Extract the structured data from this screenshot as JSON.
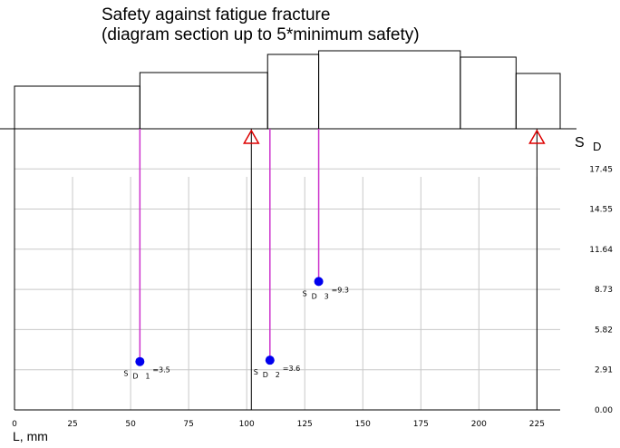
{
  "chart_data": {
    "type": "scatter",
    "title": "Safety against fatigue fracture",
    "subtitle": "(diagram section up to 5*minimum safety)",
    "xlabel": "L, mm",
    "ylabel_main": "S",
    "ylabel_sub": "D",
    "xlim": [
      0,
      235
    ],
    "ylim": [
      0,
      20.36
    ],
    "x_ticks": [
      0,
      25,
      50,
      75,
      100,
      125,
      150,
      175,
      200,
      225
    ],
    "y_ticks": [
      "0.00",
      "2.91",
      "5.82",
      "8.73",
      "11.64",
      "14.55",
      "17.45"
    ],
    "y_tick_values": [
      0,
      2.91,
      5.82,
      8.73,
      11.64,
      14.55,
      17.45
    ],
    "grid": true,
    "points": [
      {
        "x": 54,
        "y": 3.5,
        "label_main": "S",
        "label_sub": "D",
        "label_idx": "1",
        "label_val": "=3.5"
      },
      {
        "x": 110,
        "y": 3.6,
        "label_main": "S",
        "label_sub": "D",
        "label_idx": "2",
        "label_val": "=3.6"
      },
      {
        "x": 131,
        "y": 9.3,
        "label_main": "S",
        "label_sub": "D",
        "label_idx": "3",
        "label_val": "=9.3"
      }
    ],
    "supports_x": [
      102,
      225
    ],
    "shaft_profile": [
      {
        "x0": 0,
        "x1": 54,
        "top": 47
      },
      {
        "x0": 54,
        "x1": 109,
        "top": 62
      },
      {
        "x0": 109,
        "x1": 131,
        "top": 82
      },
      {
        "x0": 131,
        "x1": 192,
        "top": 86
      },
      {
        "x0": 192,
        "x1": 216,
        "top": 79
      },
      {
        "x0": 216,
        "x1": 235,
        "top": 61
      }
    ],
    "colors": {
      "point": "#0000ee",
      "stem": "#cc33cc",
      "support": "#dd0000",
      "grid": "#c8c8c8"
    }
  }
}
